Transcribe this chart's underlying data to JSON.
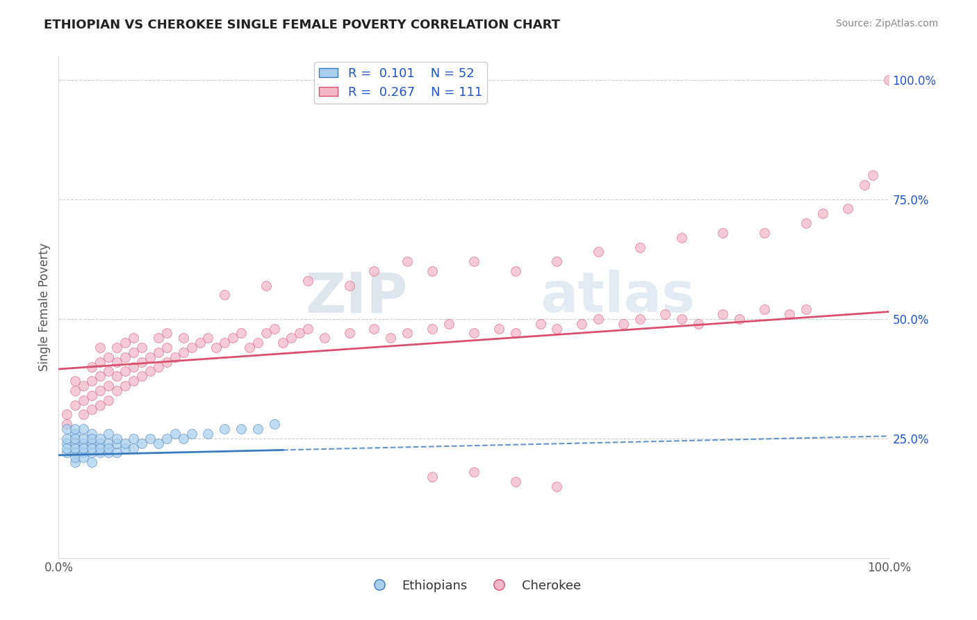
{
  "title": "ETHIOPIAN VS CHEROKEE SINGLE FEMALE POVERTY CORRELATION CHART",
  "source": "Source: ZipAtlas.com",
  "ylabel": "Single Female Poverty",
  "xlim": [
    0,
    1.0
  ],
  "ylim": [
    0,
    1.05
  ],
  "ytick_positions": [
    0.25,
    0.5,
    0.75,
    1.0
  ],
  "ytick_labels": [
    "25.0%",
    "50.0%",
    "75.0%",
    "100.0%"
  ],
  "xtick_positions": [
    0.0,
    1.0
  ],
  "xtick_labels": [
    "0.0%",
    "100.0%"
  ],
  "legend_R_ethiopian": "0.101",
  "legend_N_ethiopian": "52",
  "legend_R_cherokee": "0.267",
  "legend_N_cherokee": "111",
  "ethiopian_color": "#aacfee",
  "cherokee_color": "#f2b8c8",
  "ethiopian_line_color": "#3a7abf",
  "cherokee_line_color": "#d94f6e",
  "background_color": "#ffffff",
  "grid_color": "#cccccc",
  "title_color": "#222222",
  "legend_text_color": "#2255cc",
  "eth_x": [
    0.01,
    0.01,
    0.01,
    0.01,
    0.01,
    0.02,
    0.02,
    0.02,
    0.02,
    0.02,
    0.02,
    0.02,
    0.02,
    0.03,
    0.03,
    0.03,
    0.03,
    0.03,
    0.03,
    0.04,
    0.04,
    0.04,
    0.04,
    0.04,
    0.04,
    0.05,
    0.05,
    0.05,
    0.05,
    0.06,
    0.06,
    0.06,
    0.06,
    0.07,
    0.07,
    0.07,
    0.08,
    0.08,
    0.09,
    0.09,
    0.1,
    0.11,
    0.12,
    0.13,
    0.14,
    0.15,
    0.16,
    0.18,
    0.2,
    0.22,
    0.24,
    0.26
  ],
  "eth_y": [
    0.22,
    0.24,
    0.25,
    0.27,
    0.23,
    0.2,
    0.22,
    0.24,
    0.26,
    0.27,
    0.23,
    0.25,
    0.21,
    0.22,
    0.24,
    0.25,
    0.23,
    0.27,
    0.21,
    0.2,
    0.22,
    0.24,
    0.26,
    0.23,
    0.25,
    0.22,
    0.24,
    0.23,
    0.25,
    0.22,
    0.24,
    0.26,
    0.23,
    0.22,
    0.24,
    0.25,
    0.23,
    0.24,
    0.23,
    0.25,
    0.24,
    0.25,
    0.24,
    0.25,
    0.26,
    0.25,
    0.26,
    0.26,
    0.27,
    0.27,
    0.27,
    0.28
  ],
  "cher_x": [
    0.01,
    0.01,
    0.02,
    0.02,
    0.02,
    0.03,
    0.03,
    0.03,
    0.04,
    0.04,
    0.04,
    0.04,
    0.05,
    0.05,
    0.05,
    0.05,
    0.05,
    0.06,
    0.06,
    0.06,
    0.06,
    0.07,
    0.07,
    0.07,
    0.07,
    0.08,
    0.08,
    0.08,
    0.08,
    0.09,
    0.09,
    0.09,
    0.09,
    0.1,
    0.1,
    0.1,
    0.11,
    0.11,
    0.12,
    0.12,
    0.12,
    0.13,
    0.13,
    0.13,
    0.14,
    0.15,
    0.15,
    0.16,
    0.17,
    0.18,
    0.19,
    0.2,
    0.21,
    0.22,
    0.23,
    0.24,
    0.25,
    0.26,
    0.27,
    0.28,
    0.29,
    0.3,
    0.32,
    0.35,
    0.38,
    0.4,
    0.42,
    0.45,
    0.47,
    0.5,
    0.53,
    0.55,
    0.58,
    0.6,
    0.63,
    0.65,
    0.68,
    0.7,
    0.73,
    0.75,
    0.77,
    0.8,
    0.82,
    0.85,
    0.88,
    0.9,
    0.2,
    0.25,
    0.3,
    0.35,
    0.38,
    0.42,
    0.45,
    0.5,
    0.55,
    0.6,
    0.65,
    0.7,
    0.75,
    0.8,
    0.85,
    0.9,
    0.92,
    0.95,
    0.97,
    0.98,
    1.0,
    0.45,
    0.5,
    0.55,
    0.6
  ],
  "cher_y": [
    0.28,
    0.3,
    0.32,
    0.35,
    0.37,
    0.3,
    0.33,
    0.36,
    0.31,
    0.34,
    0.37,
    0.4,
    0.32,
    0.35,
    0.38,
    0.41,
    0.44,
    0.33,
    0.36,
    0.39,
    0.42,
    0.35,
    0.38,
    0.41,
    0.44,
    0.36,
    0.39,
    0.42,
    0.45,
    0.37,
    0.4,
    0.43,
    0.46,
    0.38,
    0.41,
    0.44,
    0.39,
    0.42,
    0.4,
    0.43,
    0.46,
    0.41,
    0.44,
    0.47,
    0.42,
    0.43,
    0.46,
    0.44,
    0.45,
    0.46,
    0.44,
    0.45,
    0.46,
    0.47,
    0.44,
    0.45,
    0.47,
    0.48,
    0.45,
    0.46,
    0.47,
    0.48,
    0.46,
    0.47,
    0.48,
    0.46,
    0.47,
    0.48,
    0.49,
    0.47,
    0.48,
    0.47,
    0.49,
    0.48,
    0.49,
    0.5,
    0.49,
    0.5,
    0.51,
    0.5,
    0.49,
    0.51,
    0.5,
    0.52,
    0.51,
    0.52,
    0.55,
    0.57,
    0.58,
    0.57,
    0.6,
    0.62,
    0.6,
    0.62,
    0.6,
    0.62,
    0.64,
    0.65,
    0.67,
    0.68,
    0.68,
    0.7,
    0.72,
    0.73,
    0.78,
    0.8,
    1.0,
    0.17,
    0.18,
    0.16,
    0.15
  ]
}
